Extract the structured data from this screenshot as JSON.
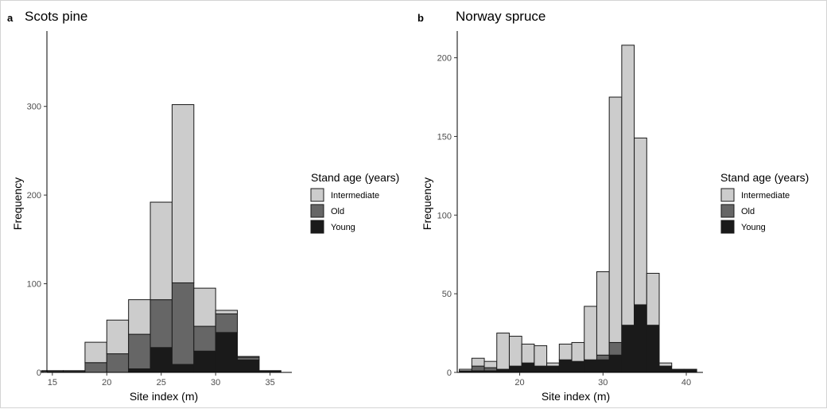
{
  "chart_data": [
    {
      "type": "bar",
      "panel_label": "a",
      "title": "Scots pine",
      "xlabel": "Site index (m)",
      "ylabel": "Frequency",
      "xlim": [
        14.5,
        37
      ],
      "ylim": [
        0,
        385
      ],
      "xticks": [
        15,
        20,
        25,
        30,
        35
      ],
      "yticks": [
        0,
        100,
        200,
        300
      ],
      "bin_width": 2,
      "stacked": true,
      "x": [
        15,
        17,
        19,
        21,
        23,
        25,
        27,
        29,
        31,
        33,
        35
      ],
      "series": [
        {
          "name": "Young",
          "color": "#1a1a1a",
          "values": [
            1,
            1,
            0,
            0,
            4,
            28,
            9,
            24,
            45,
            14,
            2
          ]
        },
        {
          "name": "Old",
          "color": "#666666",
          "values": [
            0,
            0,
            11,
            21,
            39,
            54,
            92,
            28,
            21,
            3,
            0
          ]
        },
        {
          "name": "Intermediate",
          "color": "#cccccc",
          "values": [
            1,
            1,
            23,
            38,
            39,
            110,
            201,
            43,
            4,
            1,
            0
          ]
        }
      ],
      "extra_bars": [
        {
          "x": 33,
          "values": {
            "Young": 3,
            "Old": 0,
            "Intermediate": 30
          }
        },
        {
          "x": 35,
          "values": {
            "Young": 1,
            "Old": 0,
            "Intermediate": 3
          }
        }
      ],
      "legend": {
        "title": "Stand age (years)",
        "entries": [
          "Intermediate",
          "Old",
          "Young"
        ],
        "placement": "right"
      },
      "grid": false
    },
    {
      "type": "bar",
      "panel_label": "b",
      "title": "Norway spruce",
      "xlabel": "Site index (m)",
      "ylabel": "Frequency",
      "xlim": [
        12.5,
        42
      ],
      "ylim": [
        0,
        217
      ],
      "xticks": [
        20,
        30,
        40
      ],
      "yticks": [
        0,
        50,
        100,
        150,
        200
      ],
      "bin_width": 1.5,
      "stacked": true,
      "legend": {
        "title": "Stand age (years)",
        "entries": [
          "Intermediate",
          "Old",
          "Young"
        ],
        "placement": "right"
      },
      "grid": false
    }
  ]
}
